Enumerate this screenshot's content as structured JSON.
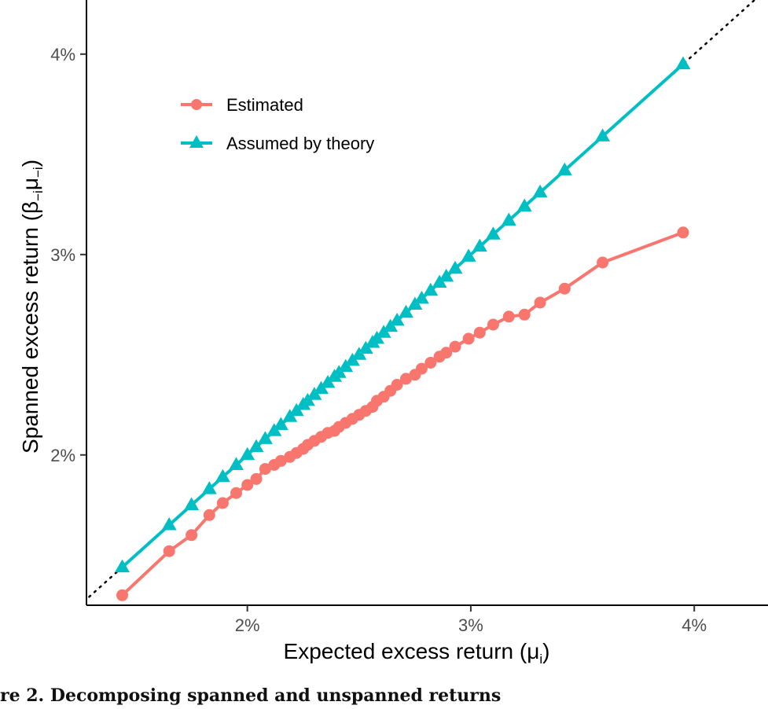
{
  "caption": "re 2. Decomposing spanned and unspanned returns",
  "chart_data": {
    "type": "line",
    "xlabel_main": "Expected excess return (",
    "xlabel_sym": "μ",
    "xlabel_sub": "i",
    "xlabel_end": ")",
    "ylabel_main": "Spanned excess return (",
    "ylabel_sym1": "β",
    "ylabel_sub1": "−i",
    "ylabel_sym2": "μ",
    "ylabel_sub2": "−i",
    "ylabel_end": ")",
    "xlim": [
      1.28,
      4.33
    ],
    "ylim": [
      1.25,
      4.27
    ],
    "x_ticks": [
      {
        "value": 2,
        "label": "2%"
      },
      {
        "value": 3,
        "label": "3%"
      },
      {
        "value": 4,
        "label": "4%"
      }
    ],
    "y_ticks": [
      {
        "value": 2,
        "label": "2%"
      },
      {
        "value": 3,
        "label": "3%"
      },
      {
        "value": 4,
        "label": "4%"
      }
    ],
    "grid": false,
    "legend_position": "top-left",
    "reference_line": {
      "style": "dotted",
      "slope": 1,
      "intercept": 0,
      "color": "#000000"
    },
    "series": [
      {
        "name": "Estimated",
        "color": "#F8766D",
        "marker": "circle",
        "x": [
          1.44,
          1.65,
          1.75,
          1.83,
          1.89,
          1.95,
          2.0,
          2.04,
          2.08,
          2.12,
          2.15,
          2.19,
          2.22,
          2.25,
          2.27,
          2.3,
          2.33,
          2.36,
          2.39,
          2.41,
          2.44,
          2.47,
          2.5,
          2.53,
          2.56,
          2.58,
          2.61,
          2.64,
          2.67,
          2.71,
          2.75,
          2.78,
          2.82,
          2.86,
          2.89,
          2.93,
          2.99,
          3.04,
          3.1,
          3.17,
          3.24,
          3.31,
          3.42,
          3.59,
          3.95
        ],
        "y": [
          1.3,
          1.52,
          1.6,
          1.7,
          1.76,
          1.81,
          1.85,
          1.88,
          1.93,
          1.95,
          1.97,
          1.99,
          2.01,
          2.03,
          2.05,
          2.07,
          2.09,
          2.11,
          2.12,
          2.14,
          2.16,
          2.18,
          2.2,
          2.22,
          2.24,
          2.27,
          2.29,
          2.32,
          2.35,
          2.38,
          2.4,
          2.43,
          2.46,
          2.49,
          2.51,
          2.54,
          2.58,
          2.61,
          2.65,
          2.69,
          2.7,
          2.76,
          2.83,
          2.96,
          3.11
        ]
      },
      {
        "name": "Assumed by theory",
        "color": "#00BFC4",
        "marker": "triangle",
        "x": [
          1.44,
          1.65,
          1.75,
          1.83,
          1.89,
          1.95,
          2.0,
          2.04,
          2.08,
          2.12,
          2.15,
          2.19,
          2.22,
          2.25,
          2.27,
          2.3,
          2.33,
          2.36,
          2.39,
          2.41,
          2.44,
          2.47,
          2.5,
          2.53,
          2.56,
          2.58,
          2.61,
          2.64,
          2.67,
          2.71,
          2.75,
          2.78,
          2.82,
          2.86,
          2.89,
          2.93,
          2.99,
          3.04,
          3.1,
          3.17,
          3.24,
          3.31,
          3.42,
          3.59,
          3.95
        ],
        "y": [
          1.44,
          1.65,
          1.75,
          1.83,
          1.89,
          1.95,
          2.0,
          2.04,
          2.08,
          2.12,
          2.15,
          2.19,
          2.22,
          2.25,
          2.27,
          2.3,
          2.33,
          2.36,
          2.39,
          2.41,
          2.44,
          2.47,
          2.5,
          2.53,
          2.56,
          2.58,
          2.61,
          2.64,
          2.67,
          2.71,
          2.75,
          2.78,
          2.82,
          2.86,
          2.89,
          2.93,
          2.99,
          3.04,
          3.1,
          3.17,
          3.24,
          3.31,
          3.42,
          3.59,
          3.95
        ]
      }
    ]
  }
}
